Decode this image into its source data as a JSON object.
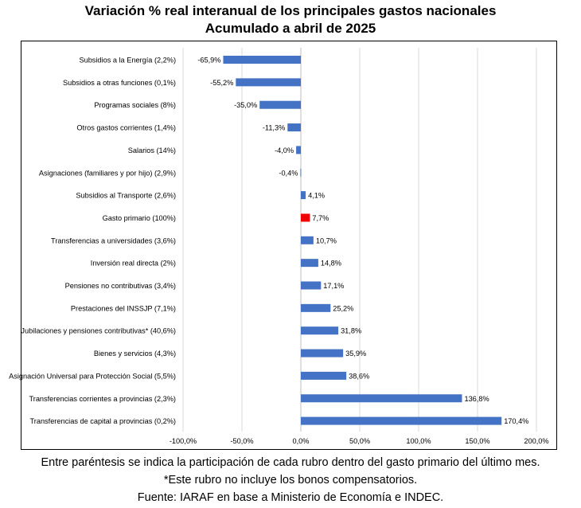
{
  "title_line1": "Variación % real interanual de los principales gastos nacionales",
  "title_line2": "Acumulado a abril de 2025",
  "notes": {
    "line1": "Entre paréntesis se indica la participación de cada rubro dentro del gasto primario del último mes.",
    "line2": "*Este rubro no incluye los bonos compensatorios.",
    "line3": "Fuente: IARAF en base a Ministerio de Economía e INDEC."
  },
  "colors": {
    "bar": "#4472C4",
    "highlight": "#EE0000"
  },
  "chart_data": {
    "type": "bar",
    "orientation": "horizontal",
    "categories": [
      "Subsidios a la Energía (2,2%)",
      "Subsidios a otras funciones (0,1%)",
      "Programas sociales (8%)",
      "Otros gastos corrientes (1,4%)",
      "Salarios (14%)",
      "Asignaciones (familiares y por hijo) (2,9%)",
      "Subsidios al Transporte (2,6%)",
      "Gasto primario (100%)",
      "Transferencias a universidades (3,6%)",
      "Inversión real directa (2%)",
      "Pensiones no contributivas (3,4%)",
      "Prestaciones del INSSJP (7,1%)",
      "Jubilaciones y pensiones contributivas* (40,6%)",
      "Bienes y servicios (4,3%)",
      "Asignación Universal para Protección Social (5,5%)",
      "Transferencias corrientes a provincias (2,3%)",
      "Transferencias de capital a provincias (0,2%)"
    ],
    "values": [
      -65.9,
      -55.2,
      -35.0,
      -11.3,
      -4.0,
      -0.4,
      4.1,
      7.7,
      10.7,
      14.8,
      17.1,
      25.2,
      31.8,
      35.9,
      38.6,
      136.8,
      170.4
    ],
    "data_labels": [
      "-65,9%",
      "-55,2%",
      "-35,0%",
      "-11,3%",
      "-4,0%",
      "-0,4%",
      "4,1%",
      "7,7%",
      "10,7%",
      "14,8%",
      "17,1%",
      "25,2%",
      "31,8%",
      "35,9%",
      "38,6%",
      "136,8%",
      "170,4%"
    ],
    "highlight_category": "Gasto primario (100%)",
    "xlim": [
      -100,
      200
    ],
    "xticks": [
      -100,
      -50,
      0,
      50,
      100,
      150,
      200
    ],
    "xtick_labels": [
      "-100,0%",
      "-50,0%",
      "0,0%",
      "50,0%",
      "100,0%",
      "150,0%",
      "200,0%"
    ],
    "grid": true,
    "legend": "none"
  }
}
